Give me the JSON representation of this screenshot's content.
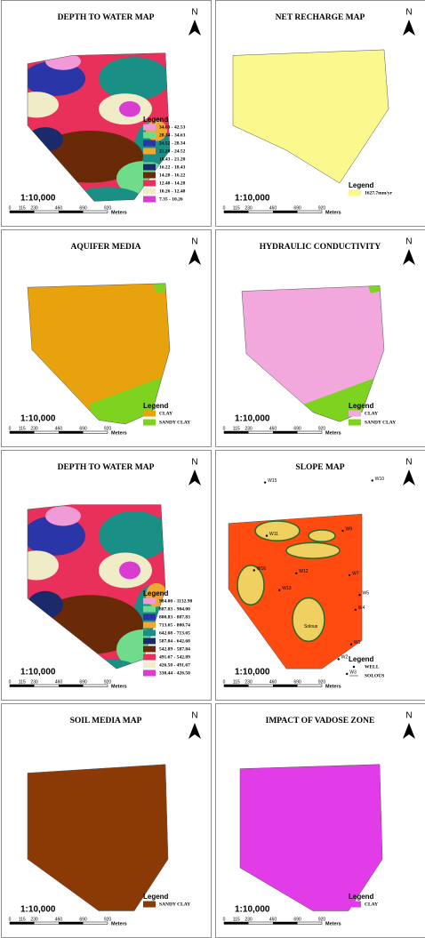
{
  "scale_bar": {
    "ratio": "1:10,000",
    "ticks": [
      "0",
      "115",
      "230",
      "460",
      "690",
      "920"
    ],
    "unit": "Meters"
  },
  "north": "N",
  "panels": [
    {
      "title": "DEPTH TO WATER MAP",
      "legend_title": "Legend",
      "legend": [
        {
          "label": "34.63 - 42.53",
          "color": "#f09ad8"
        },
        {
          "label": "28.34 - 34.63",
          "color": "#6fdc8c"
        },
        {
          "label": "24.52 - 28.34",
          "color": "#2a35a8"
        },
        {
          "label": "21.20 - 24.52",
          "color": "#f0a830"
        },
        {
          "label": "18.43 - 21.20",
          "color": "#1a8f86"
        },
        {
          "label": "16.22 - 18.43",
          "color": "#1a2a6a"
        },
        {
          "label": "14.28 - 16.22",
          "color": "#6a2a08"
        },
        {
          "label": "12.48 - 14.28",
          "color": "#e8305a"
        },
        {
          "label": "10.26 - 12.48",
          "color": "#f0ecc8"
        },
        {
          "label": "7.35 - 10.26",
          "color": "#d83cd0"
        }
      ]
    },
    {
      "title": "NET RECHARGE MAP",
      "legend_title": "Legend",
      "legend": [
        {
          "label": "1627.7mm/yr",
          "color": "#fbf88e"
        }
      ]
    },
    {
      "title": "AQUIFER MEDIA",
      "legend_title": "Legend",
      "legend": [
        {
          "label": "CLAY",
          "color": "#e8a20e"
        },
        {
          "label": "SANDY CLAY",
          "color": "#7ed321"
        }
      ]
    },
    {
      "title": "HYDRAULIC CONDUCTIVITY",
      "legend_title": "Legend",
      "legend": [
        {
          "label": "CLAY",
          "color": "#f2a8dc"
        },
        {
          "label": "SANDY CLAY",
          "color": "#7ed321"
        }
      ]
    },
    {
      "title": "DEPTH TO WATER MAP",
      "legend_title": "Legend",
      "legend": [
        {
          "label": "984.00 - 1132.98",
          "color": "#f09ad8"
        },
        {
          "label": "887.83 - 984.00",
          "color": "#6fdc8c"
        },
        {
          "label": "800.83 - 887.83",
          "color": "#2a35a8"
        },
        {
          "label": "713.65 - 800.74",
          "color": "#f0a830"
        },
        {
          "label": "642.68 - 713.65",
          "color": "#1a8f86"
        },
        {
          "label": "587.84 - 642.68",
          "color": "#1a2a6a"
        },
        {
          "label": "542.89 - 587.84",
          "color": "#6a2a08"
        },
        {
          "label": "491.67 - 542.89",
          "color": "#e8305a"
        },
        {
          "label": "426.50 - 491.67",
          "color": "#f0ecc8"
        },
        {
          "label": "330.44 - 426.50",
          "color": "#d83cd0"
        }
      ]
    },
    {
      "title": "SLOPE MAP",
      "legend_title": "Legend",
      "legend": [
        {
          "label": "WELL",
          "color": "#000000"
        },
        {
          "label": "SOLOUS",
          "color": "#000000"
        }
      ],
      "wells": [
        "W15",
        "W10",
        "W11",
        "W9",
        "W16",
        "W12",
        "W7",
        "W13",
        "W5",
        "W4",
        "W1",
        "W2",
        "W3"
      ],
      "site": "Solous"
    },
    {
      "title": "SOIL MEDIA MAP",
      "legend_title": "Legend",
      "legend": [
        {
          "label": "SANDY CLAY",
          "color": "#8b3a06"
        }
      ]
    },
    {
      "title": "IMPACT OF VADOSE ZONE",
      "legend_title": "Legend",
      "legend": [
        {
          "label": "CLAY",
          "color": "#e23ce8"
        }
      ]
    }
  ]
}
